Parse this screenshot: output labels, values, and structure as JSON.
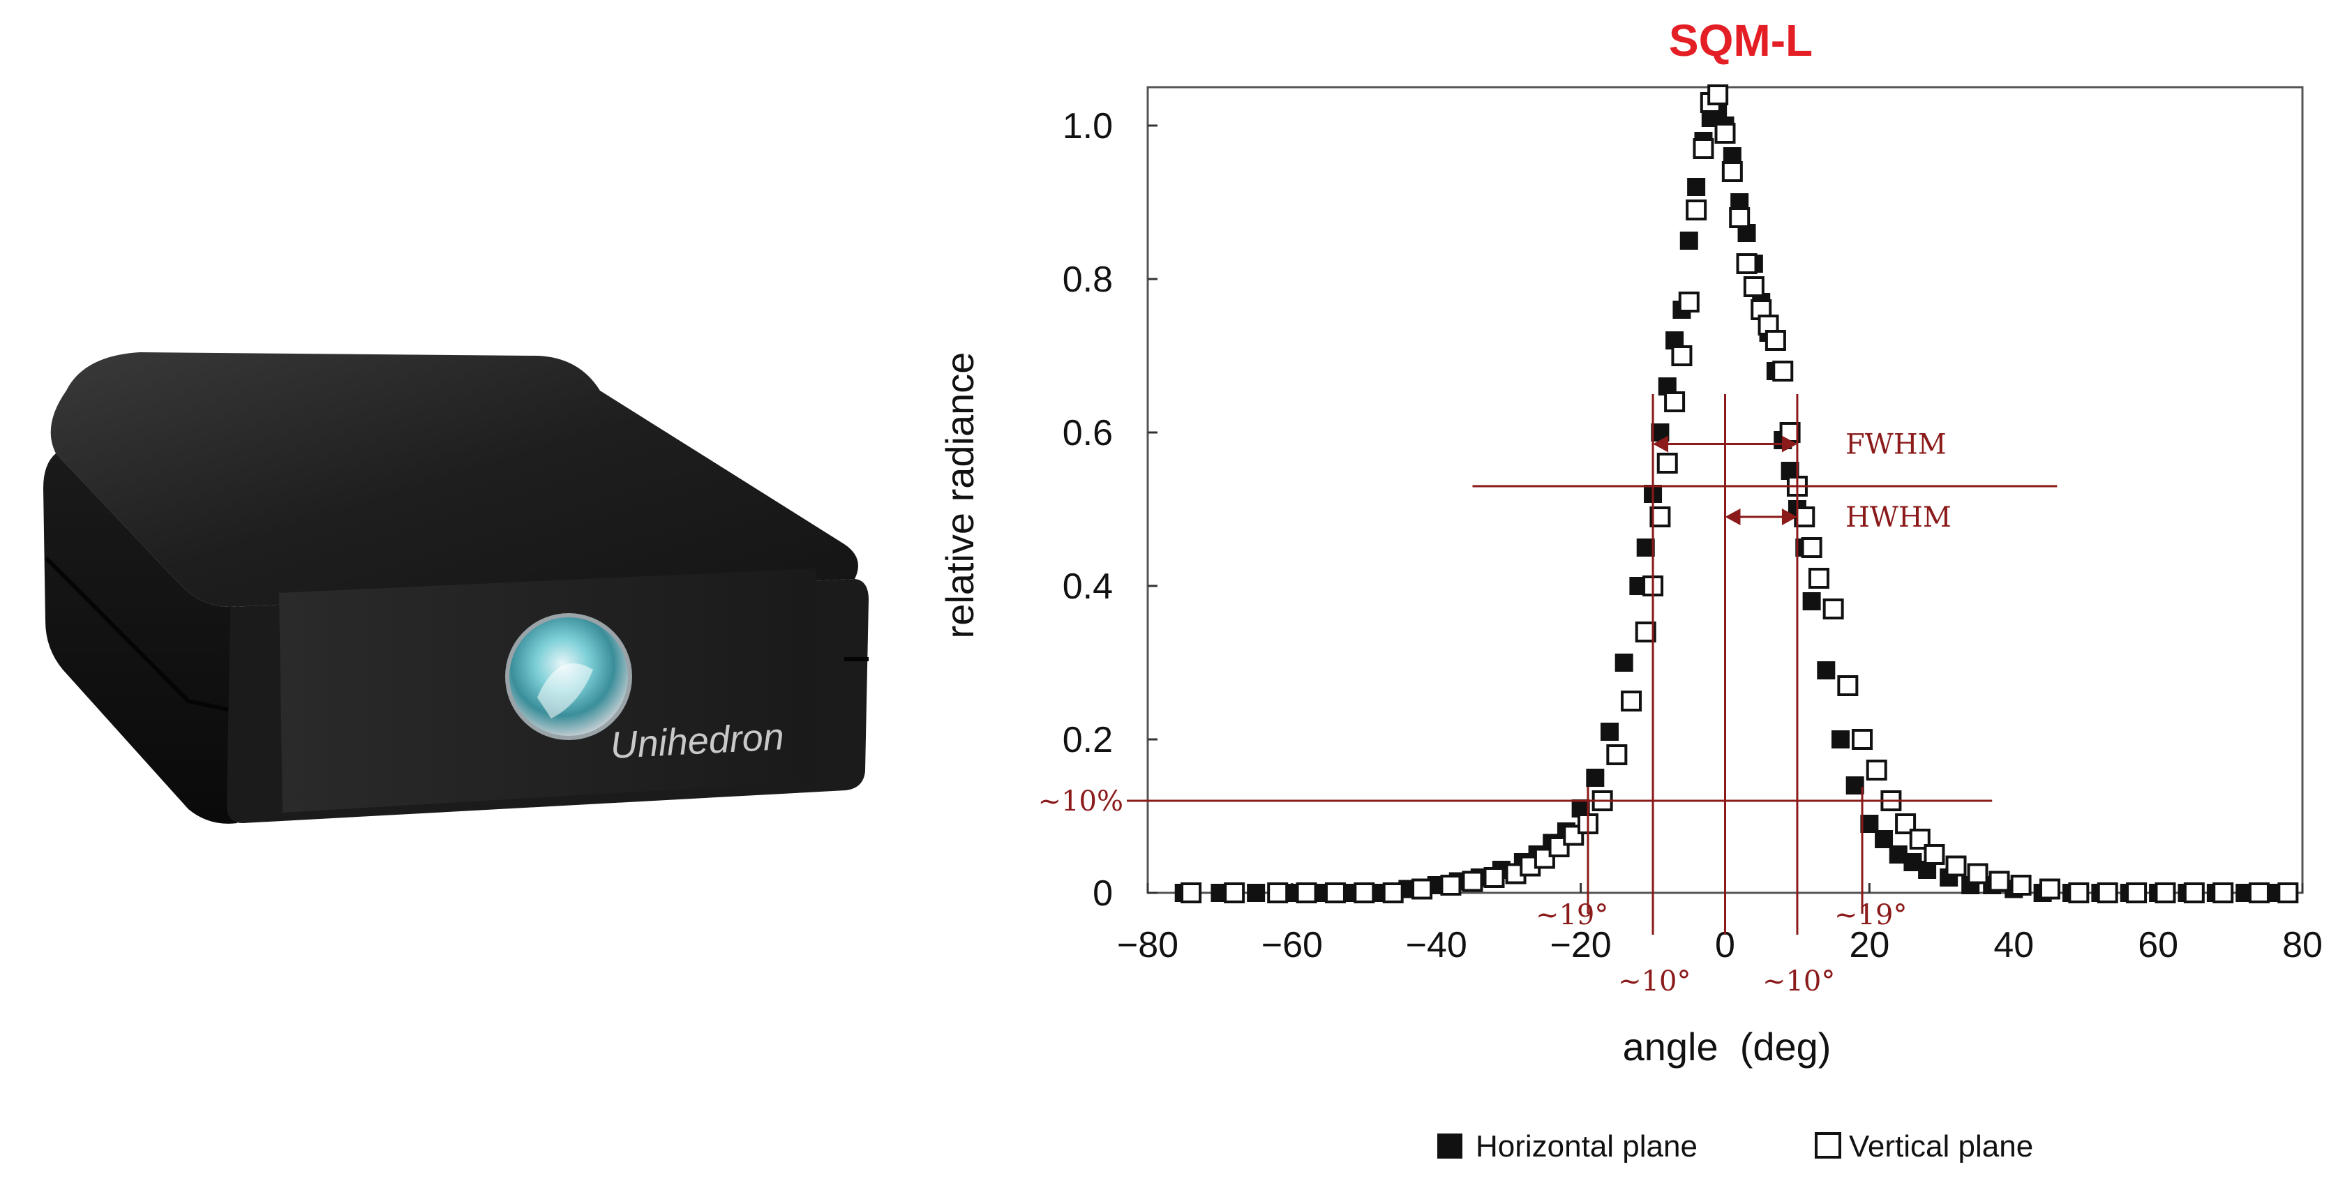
{
  "product": {
    "brand": "Unihedron",
    "icon": "sky-quality-meter-device-photo"
  },
  "chart_data": {
    "type": "scatter",
    "title": "SQM-L",
    "xlabel": "angle  (deg)",
    "ylabel": "relative radiance",
    "xlim": [
      -80,
      80
    ],
    "ylim": [
      0,
      1.05
    ],
    "x_ticks": [
      -80,
      -60,
      -40,
      -20,
      0,
      20,
      40,
      60,
      80
    ],
    "x_tick_labels": [
      "−80",
      "−60",
      "−40",
      "−20",
      "0",
      "20",
      "40",
      "60",
      "80"
    ],
    "y_ticks": [
      0,
      0.2,
      0.4,
      0.6,
      0.8,
      1.0
    ],
    "y_tick_labels": [
      "0",
      "0.2",
      "0.4",
      "0.6",
      "0.8",
      "1.0"
    ],
    "grid": false,
    "legend_position": "bottom",
    "colors": {
      "title": "#e31e24",
      "annotation": "#8b1a1a",
      "marker": "#111111"
    },
    "series": [
      {
        "name": "Horizontal plane",
        "marker": "filled-square",
        "x": [
          -75,
          -70,
          -65,
          -60,
          -56,
          -52,
          -48,
          -44,
          -40,
          -37,
          -34,
          -31,
          -28,
          -26,
          -24,
          -22,
          -20,
          -18,
          -16,
          -14,
          -12,
          -11,
          -10,
          -9,
          -8,
          -7,
          -6,
          -5,
          -4,
          -3,
          -2,
          -1,
          0,
          1,
          2,
          3,
          4,
          5,
          6,
          7,
          8,
          9,
          10,
          11,
          12,
          14,
          16,
          18,
          20,
          22,
          24,
          26,
          28,
          31,
          34,
          37,
          40,
          44,
          48,
          52,
          56,
          60,
          64,
          68,
          72,
          76
        ],
        "y": [
          0,
          0,
          0,
          0,
          0,
          0,
          0,
          0.005,
          0.01,
          0.015,
          0.02,
          0.03,
          0.04,
          0.05,
          0.065,
          0.08,
          0.11,
          0.15,
          0.21,
          0.3,
          0.4,
          0.45,
          0.52,
          0.6,
          0.66,
          0.72,
          0.76,
          0.85,
          0.92,
          0.98,
          1.01,
          1.02,
          1.0,
          0.96,
          0.9,
          0.86,
          0.82,
          0.77,
          0.73,
          0.68,
          0.59,
          0.55,
          0.5,
          0.45,
          0.38,
          0.29,
          0.2,
          0.14,
          0.09,
          0.07,
          0.05,
          0.04,
          0.03,
          0.02,
          0.01,
          0.01,
          0.005,
          0,
          0,
          0,
          0,
          0,
          0,
          0,
          0,
          0
        ]
      },
      {
        "name": "Vertical plane",
        "marker": "open-square",
        "x": [
          -74,
          -68,
          -62,
          -58,
          -54,
          -50,
          -46,
          -42,
          -38,
          -35,
          -32,
          -29,
          -27,
          -25,
          -23,
          -21,
          -19,
          -17,
          -15,
          -13,
          -11,
          -10,
          -9,
          -8,
          -7,
          -6,
          -5,
          -4,
          -3,
          -2,
          -1,
          0,
          1,
          2,
          3,
          4,
          5,
          6,
          7,
          8,
          9,
          10,
          11,
          12,
          13,
          15,
          17,
          19,
          21,
          23,
          25,
          27,
          29,
          32,
          35,
          38,
          41,
          45,
          49,
          53,
          57,
          61,
          65,
          69,
          74,
          78
        ],
        "y": [
          0,
          0,
          0,
          0,
          0,
          0,
          0,
          0.005,
          0.01,
          0.015,
          0.02,
          0.025,
          0.035,
          0.045,
          0.06,
          0.075,
          0.09,
          0.12,
          0.18,
          0.25,
          0.34,
          0.4,
          0.49,
          0.56,
          0.64,
          0.7,
          0.77,
          0.89,
          0.97,
          1.03,
          1.04,
          0.99,
          0.94,
          0.88,
          0.82,
          0.79,
          0.76,
          0.74,
          0.72,
          0.68,
          0.6,
          0.53,
          0.49,
          0.45,
          0.41,
          0.37,
          0.27,
          0.2,
          0.16,
          0.12,
          0.09,
          0.07,
          0.05,
          0.035,
          0.025,
          0.015,
          0.01,
          0.005,
          0,
          0,
          0,
          0,
          0,
          0,
          0,
          0
        ]
      }
    ],
    "annotations": {
      "fwhm_label": "FWHM",
      "hwhm_label": "HWHM",
      "ten_percent_label": "~10%",
      "left_19_label": "~19°",
      "right_19_label": "~19°",
      "left_10_label": "~10°",
      "right_10_label": "~10°",
      "half_max_level": 0.53,
      "ten_percent_level": 0.12,
      "half_width_angle": 10,
      "ten_percent_angle": 19
    },
    "legend": {
      "horizontal_label": "Horizontal plane",
      "vertical_label": "Vertical plane"
    }
  }
}
